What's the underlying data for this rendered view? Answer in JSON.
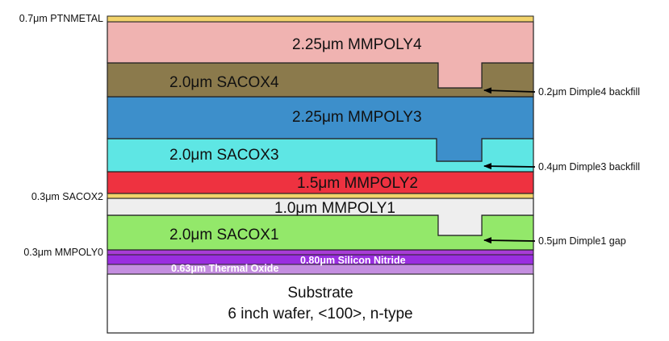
{
  "layers": {
    "ptnmetal": {
      "label": "0.7μm PTNMETAL",
      "color": "#f2d36b"
    },
    "mmpoly4": {
      "label": "2.25μm MMPOLY4",
      "color": "#f0b3b1"
    },
    "sacox4": {
      "label": "2.0μm SACOX4",
      "color": "#8b7a4c"
    },
    "mmpoly3": {
      "label": "2.25μm MMPOLY3",
      "color": "#3d8fcb"
    },
    "sacox3": {
      "label": "2.0μm SACOX3",
      "color": "#5ee6e4"
    },
    "mmpoly2": {
      "label": "1.5μm MMPOLY2",
      "color": "#ee3240"
    },
    "sacox2": {
      "label": "0.3μm SACOX2",
      "color": "#f2d36b"
    },
    "mmpoly1": {
      "label": "1.0μm MMPOLY1",
      "color": "#eeeeee"
    },
    "sacox1": {
      "label": "2.0μm SACOX1",
      "color": "#93e86a"
    },
    "mmpoly0": {
      "label": "0.3μm MMPOLY0",
      "color": "#a83cd6"
    },
    "nitride": {
      "label": "0.80μm Silicon Nitride",
      "color": "#9a2ee0"
    },
    "oxide": {
      "label": "0.63μm Thermal Oxide",
      "color": "#c48ee0"
    },
    "substrate": {
      "label": "Substrate",
      "label2": "6 inch wafer, <100>, n-type",
      "color": "#ffffff"
    }
  },
  "annotations": {
    "dimple4": "0.2μm Dimple4 backfill",
    "dimple3": "0.4μm Dimple3 backfill",
    "dimple1": "0.5μm Dimple1 gap"
  }
}
